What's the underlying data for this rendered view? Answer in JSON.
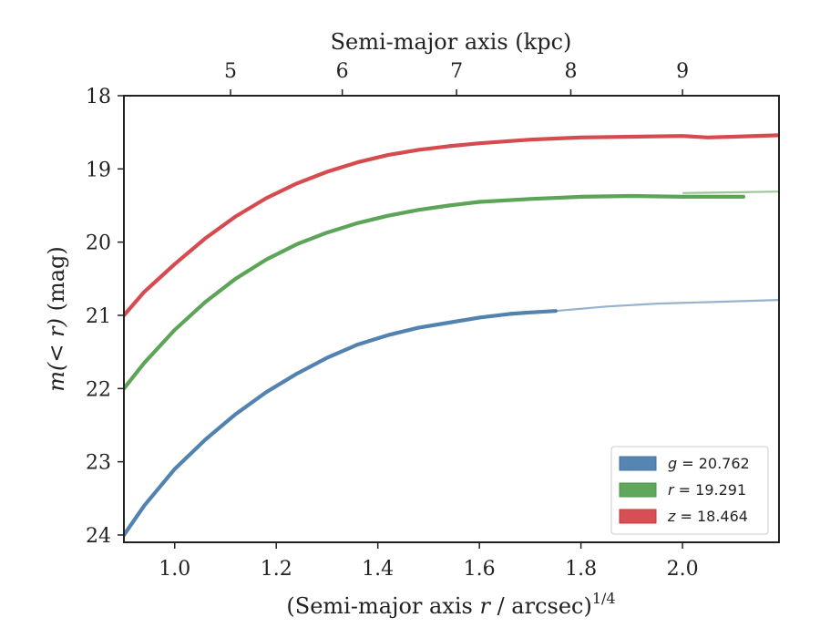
{
  "chart_data": {
    "type": "line",
    "title": "",
    "xlabel": "(Semi-major axis r / arcsec)",
    "xlabel_parts": {
      "prefix": "(Semi-major axis ",
      "var": "r",
      "suffix": " / arcsec)",
      "exponent": "1/4"
    },
    "ylabel": "m(< r) (mag)",
    "ylabel_parts": {
      "math": "m(< r)",
      "unit": " (mag)"
    },
    "top_xlabel": "Semi-major axis (kpc)",
    "xlim": [
      0.9,
      2.19
    ],
    "ylim": [
      24.1,
      18.0
    ],
    "y_inverted": true,
    "xticks": [
      1.0,
      1.2,
      1.4,
      1.6,
      1.8,
      2.0
    ],
    "xtick_labels": [
      "1.0",
      "1.2",
      "1.4",
      "1.6",
      "1.8",
      "2.0"
    ],
    "yticks": [
      18,
      19,
      20,
      21,
      22,
      23,
      24
    ],
    "ytick_labels": [
      "18",
      "19",
      "20",
      "21",
      "22",
      "23",
      "24"
    ],
    "top_xticks": [
      5,
      6,
      7,
      8,
      9
    ],
    "top_xtick_labels": [
      "5",
      "6",
      "7",
      "8",
      "9"
    ],
    "top_xtick_positions": [
      1.11,
      1.33,
      1.555,
      1.78,
      2.0
    ],
    "grid": false,
    "legend_position": "lower-right",
    "series": [
      {
        "name": "g = 20.762",
        "legend_var": "g",
        "legend_value": "= 20.762",
        "color": "#3f74a6",
        "x": [
          0.9,
          0.94,
          1.0,
          1.06,
          1.12,
          1.18,
          1.24,
          1.3,
          1.36,
          1.42,
          1.48,
          1.54,
          1.6,
          1.66,
          1.7,
          1.75
        ],
        "y": [
          24.0,
          23.6,
          23.1,
          22.7,
          22.35,
          22.05,
          21.8,
          21.58,
          21.4,
          21.27,
          21.17,
          21.1,
          21.03,
          20.98,
          20.96,
          20.94
        ],
        "ext_x": [
          1.75,
          1.85,
          1.95,
          2.05,
          2.19
        ],
        "ext_y": [
          20.94,
          20.88,
          20.84,
          20.82,
          20.79
        ]
      },
      {
        "name": "r = 19.291",
        "legend_var": "r",
        "legend_value": "= 19.291",
        "color": "#4a9a46",
        "x": [
          0.9,
          0.94,
          1.0,
          1.06,
          1.12,
          1.18,
          1.24,
          1.3,
          1.36,
          1.42,
          1.48,
          1.54,
          1.6,
          1.7,
          1.8,
          1.9,
          2.0,
          2.12
        ],
        "y": [
          22.0,
          21.65,
          21.2,
          20.82,
          20.5,
          20.24,
          20.03,
          19.87,
          19.74,
          19.64,
          19.56,
          19.5,
          19.45,
          19.41,
          19.38,
          19.37,
          19.38,
          19.38
        ],
        "ext_x": [
          2.0,
          2.1,
          2.19
        ],
        "ext_y": [
          19.33,
          19.32,
          19.31
        ]
      },
      {
        "name": "z = 18.464",
        "legend_var": "z",
        "legend_value": "= 18.464",
        "color": "#d0373c",
        "x": [
          0.9,
          0.94,
          1.0,
          1.06,
          1.12,
          1.18,
          1.24,
          1.3,
          1.36,
          1.42,
          1.48,
          1.54,
          1.6,
          1.7,
          1.8,
          1.9,
          2.0,
          2.05,
          2.1,
          2.19
        ],
        "y": [
          21.0,
          20.68,
          20.3,
          19.95,
          19.65,
          19.4,
          19.2,
          19.04,
          18.91,
          18.81,
          18.74,
          18.69,
          18.65,
          18.6,
          18.57,
          18.56,
          18.55,
          18.57,
          18.56,
          18.54
        ],
        "ext_x": [],
        "ext_y": []
      }
    ]
  }
}
